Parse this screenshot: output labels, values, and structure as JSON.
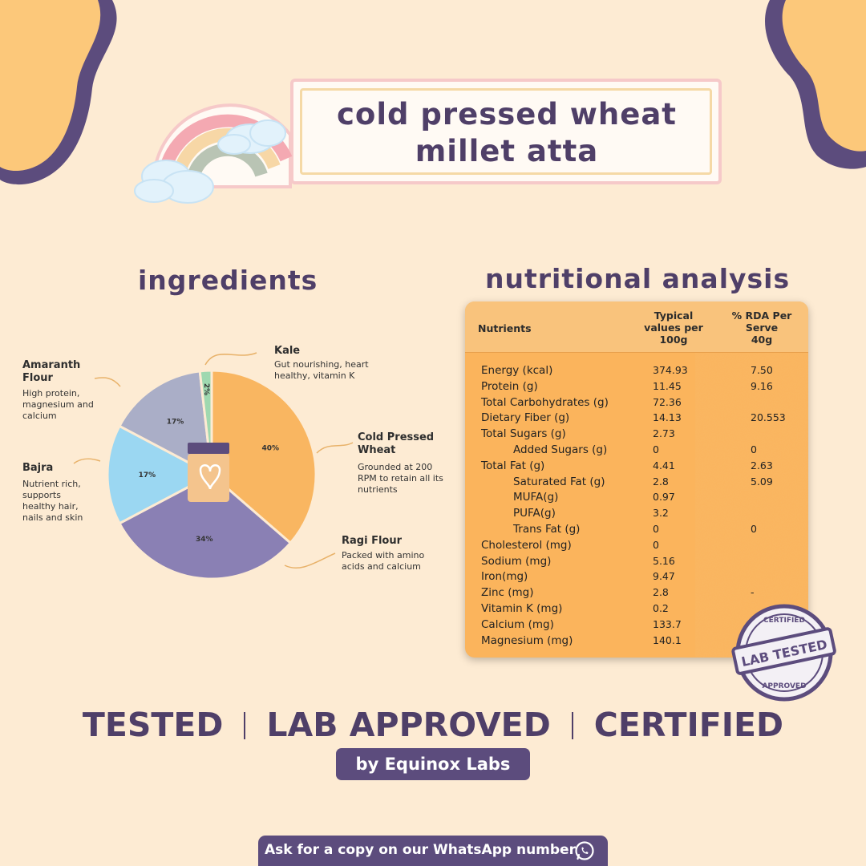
{
  "title": {
    "line1": "cold pressed wheat",
    "line2": "millet atta"
  },
  "headings": {
    "ingredients": "ingredients",
    "nutrition": "nutritional analysis"
  },
  "chart_data": {
    "type": "pie",
    "title": "ingredients",
    "slices": [
      {
        "label": "Cold Pressed Wheat",
        "value": 40,
        "value_label": "40%",
        "color": "#f9b661"
      },
      {
        "label": "Ragi Flour",
        "value": 34,
        "value_label": "34%",
        "color": "#8a80b4"
      },
      {
        "label": "Bajra",
        "value": 17,
        "value_label": "17%",
        "color": "#9bd7f2"
      },
      {
        "label": "Amaranth Flour",
        "value": 17,
        "value_label": "17%",
        "color": "#aaaec7"
      },
      {
        "label": "Kale",
        "value": 2,
        "value_label": "2%",
        "color": "#9fd8b0"
      }
    ]
  },
  "ingredients": [
    {
      "name_line1": "Kale",
      "name_line2": "",
      "desc": [
        "Gut nourishing, heart",
        "healthy, vitamin K"
      ]
    },
    {
      "name_line1": "Amaranth",
      "name_line2": "Flour",
      "desc": [
        "High protein,",
        "magnesium and",
        "calcium"
      ]
    },
    {
      "name_line1": "Cold Pressed",
      "name_line2": "Wheat",
      "desc": [
        "Grounded at 200",
        "RPM to retain all its",
        "nutrients"
      ]
    },
    {
      "name_line1": "Bajra",
      "name_line2": "",
      "desc": [
        "Nutrient rich,",
        "supports",
        "healthy hair,",
        "nails and skin"
      ]
    },
    {
      "name_line1": "Ragi Flour",
      "name_line2": "",
      "desc": [
        "Packed with amino",
        "acids and calcium"
      ]
    }
  ],
  "table": {
    "headers": {
      "nutrients": "Nutrients",
      "typical": [
        "Typical",
        "values per",
        "100g"
      ],
      "rda": [
        "% RDA Per",
        "Serve",
        "40g"
      ]
    },
    "rows": [
      {
        "name": "Energy (kcal)",
        "value": "374.93",
        "rda": "7.50",
        "indent": false
      },
      {
        "name": "Protein (g)",
        "value": "11.45",
        "rda": "9.16",
        "indent": false
      },
      {
        "name": "Total Carbohydrates (g)",
        "value": "72.36",
        "rda": "",
        "indent": false
      },
      {
        "name": "Dietary Fiber (g)",
        "value": "14.13",
        "rda": "20.553",
        "indent": false
      },
      {
        "name": "Total Sugars (g)",
        "value": "2.73",
        "rda": "",
        "indent": false
      },
      {
        "name": "Added Sugars (g)",
        "value": "0",
        "rda": "0",
        "indent": true
      },
      {
        "name": "Total Fat (g)",
        "value": "4.41",
        "rda": "2.63",
        "indent": false
      },
      {
        "name": "Saturated Fat (g)",
        "value": "2.8",
        "rda": "5.09",
        "indent": true
      },
      {
        "name": "MUFA(g)",
        "value": "0.97",
        "rda": "",
        "indent": true
      },
      {
        "name": "PUFA(g)",
        "value": "3.2",
        "rda": "",
        "indent": true
      },
      {
        "name": "Trans Fat (g)",
        "value": "0",
        "rda": "0",
        "indent": true
      },
      {
        "name": "Cholesterol (mg)",
        "value": "0",
        "rda": "",
        "indent": false
      },
      {
        "name": "Sodium (mg)",
        "value": "5.16",
        "rda": "",
        "indent": false
      },
      {
        "name": "Iron(mg)",
        "value": "9.47",
        "rda": "",
        "indent": false
      },
      {
        "name": "Zinc (mg)",
        "value": "2.8",
        "rda": "-",
        "indent": false
      },
      {
        "name": "Vitamin K (mg)",
        "value": "0.2",
        "rda": "",
        "indent": false
      },
      {
        "name": "Calcium (mg)",
        "value": "133.7",
        "rda": "",
        "indent": false
      },
      {
        "name": "Magnesium (mg)",
        "value": "140.1",
        "rda": "",
        "indent": false
      }
    ]
  },
  "stamp": {
    "top": "CERTIFIED",
    "middle": "LAB TESTED",
    "bottom": "APPROVED"
  },
  "bottom": {
    "words": [
      "TESTED",
      "LAB APPROVED",
      "CERTIFIED"
    ],
    "by": "by Equinox Labs",
    "whatsapp": "Ask for a copy on our WhatsApp number"
  },
  "colors": {
    "purple": "#4f3f68",
    "background": "#fdebd3",
    "blob": "#fcc87a",
    "table": "#fbb45c"
  }
}
